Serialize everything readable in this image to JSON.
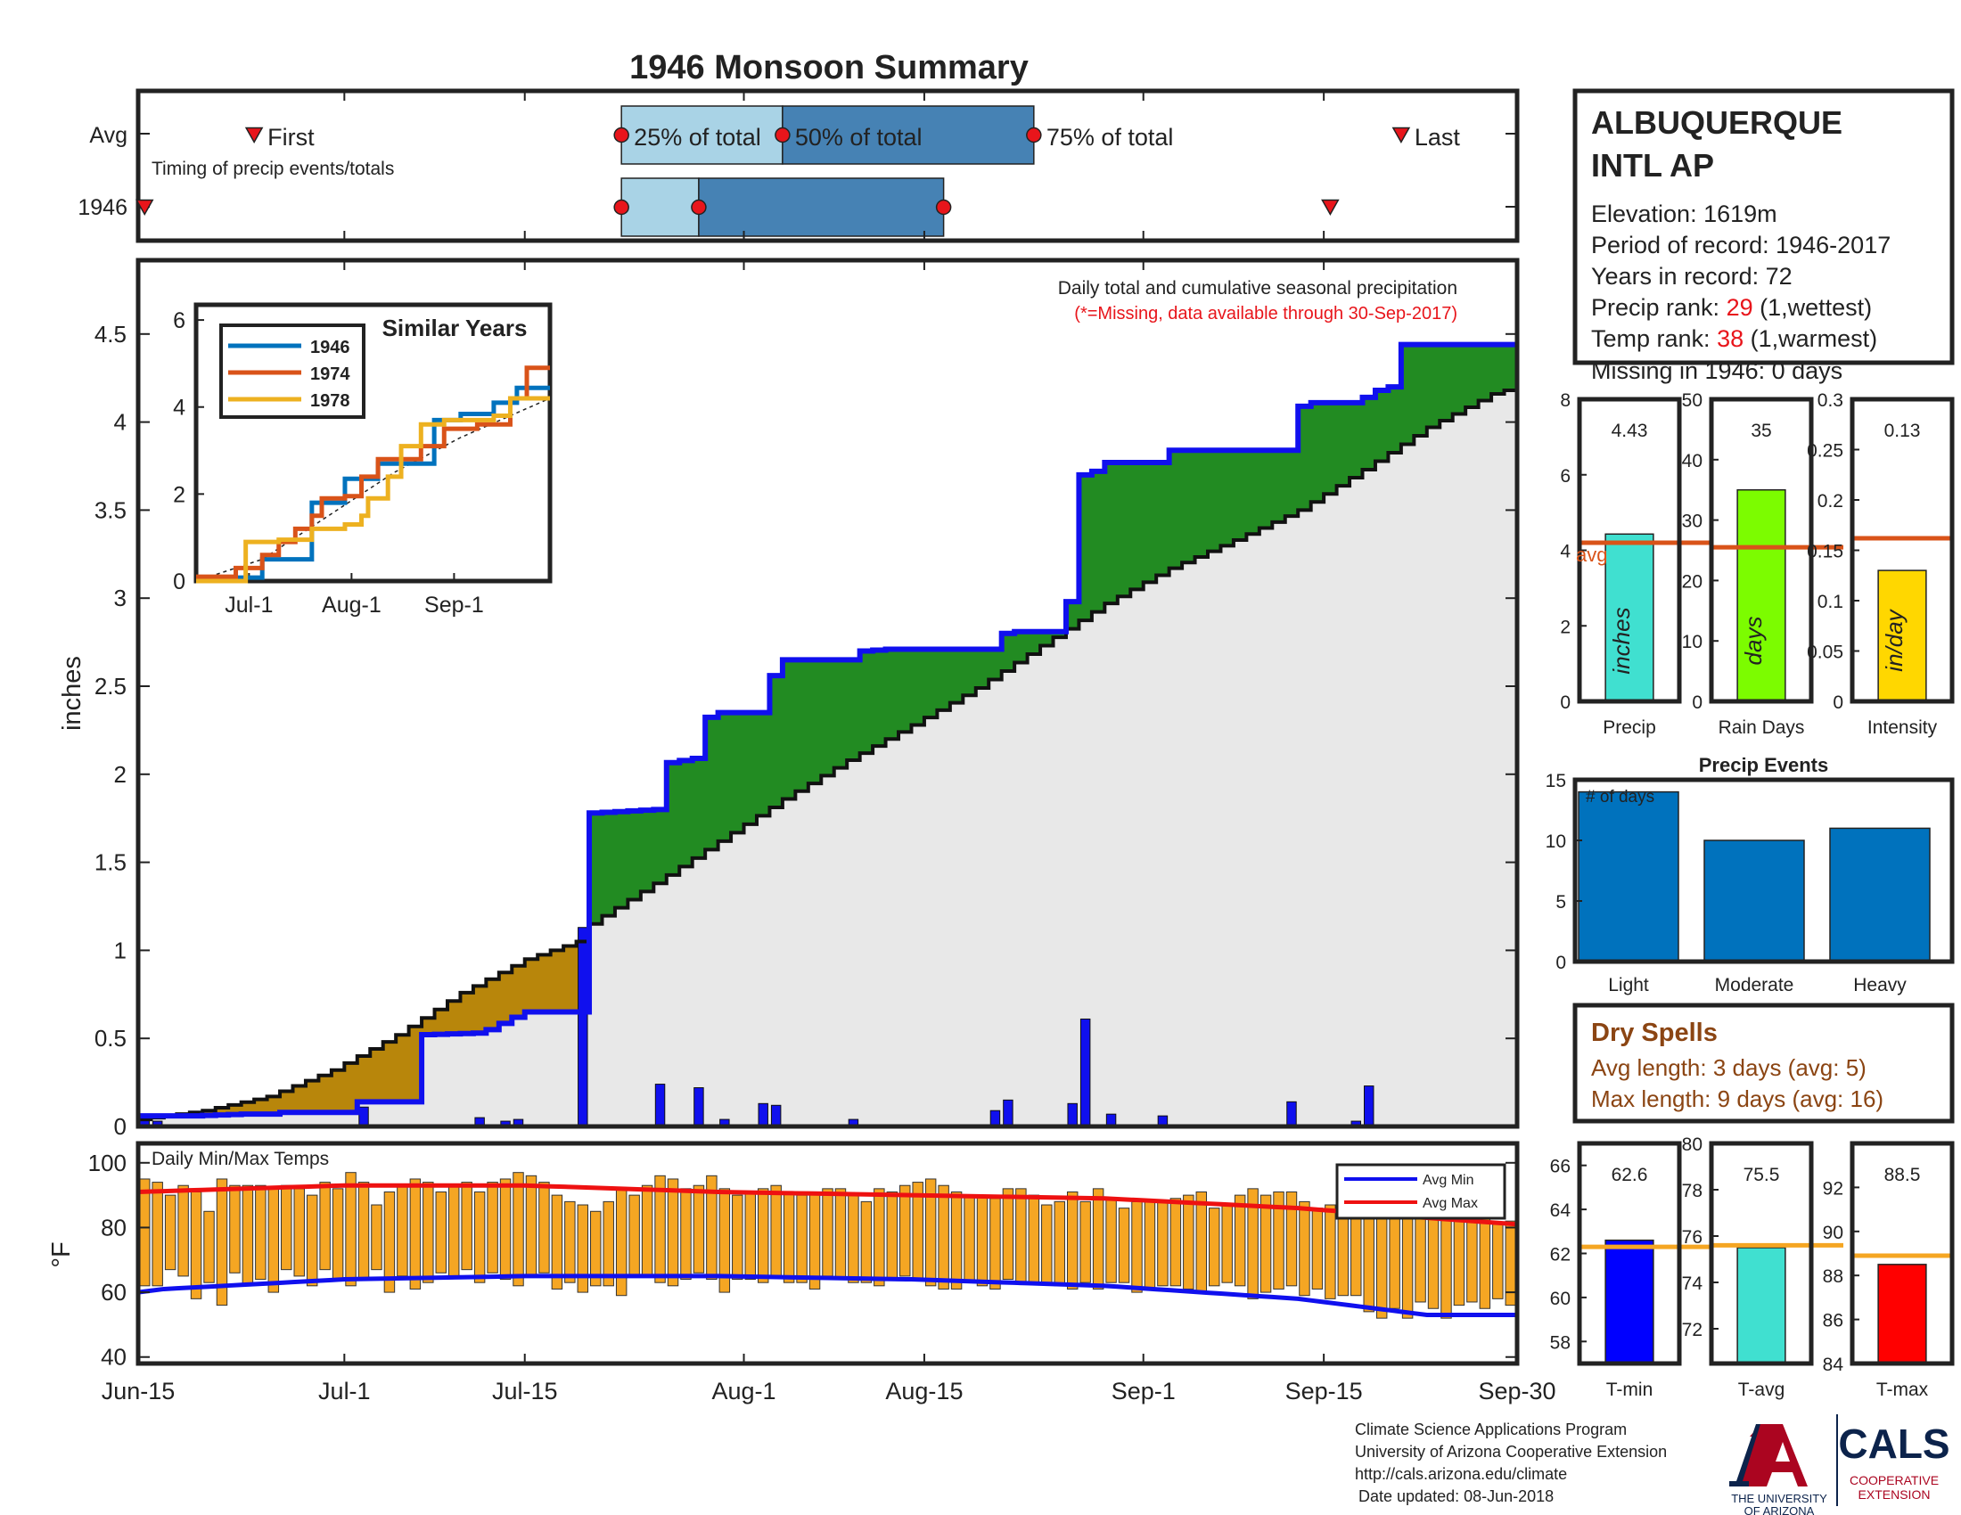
{
  "title": "1946 Monsoon Summary",
  "station": {
    "name_line1": "ALBUQUERQUE",
    "name_line2": "INTL AP",
    "elevation": "Elevation: 1619m",
    "period": "Period of record: 1946-2017",
    "years": "Years in record: 72",
    "precip_rank_label": "Precip rank: ",
    "precip_rank_value": "29",
    "precip_rank_note": " (1,wettest)",
    "temp_rank_label": "Temp rank: ",
    "temp_rank_value": "38",
    "temp_rank_note": " (1,warmest)",
    "missing": "Missing in 1946: 0 days"
  },
  "colors": {
    "accent_red": "#e8151b",
    "precip_line": "#1010ee",
    "green_fill": "#228b22",
    "brown_fill": "#b8860b",
    "gray_fill": "#e8e8e8",
    "light_blue": "#a9d3e6",
    "steel_blue": "#4682b4",
    "temp_bar": "#f5a623",
    "dry_spell_text": "#8b4513"
  },
  "timing": {
    "row_avg_label": "Avg",
    "row_year_label": "1946",
    "subtitle": "Timing of precip events/totals",
    "first_label": "First",
    "last_label": "Last",
    "p25_label": "25% of total",
    "p50_label": "50% of total",
    "p75_label": "75% of total",
    "avg": {
      "first_day": 9,
      "p25": 37.5,
      "p50": 50,
      "p75": 69.5,
      "last_day": 98
    },
    "year": {
      "first_day": 0.5,
      "p25": 37.5,
      "p50": 43.5,
      "p75": 62.5,
      "last_day": 92.5
    }
  },
  "main_chart": {
    "ylabel": "inches",
    "note": "Daily total and cumulative seasonal precipitation",
    "missing_note": "(*=Missing, data available through 30-Sep-2017)",
    "yticks": [
      "0",
      "0.5",
      "1",
      "1.5",
      "2",
      "2.5",
      "3",
      "3.5",
      "4",
      "4.5"
    ]
  },
  "x_axis": {
    "ticks": [
      {
        "day": 0,
        "label": "Jun-15"
      },
      {
        "day": 16,
        "label": "Jul-1"
      },
      {
        "day": 30,
        "label": "Jul-15"
      },
      {
        "day": 47,
        "label": "Aug-1"
      },
      {
        "day": 61,
        "label": "Aug-15"
      },
      {
        "day": 78,
        "label": "Sep-1"
      },
      {
        "day": 92,
        "label": "Sep-15"
      },
      {
        "day": 107,
        "label": "Sep-30"
      }
    ]
  },
  "chart_data": [
    {
      "type": "area",
      "title": "Daily total and cumulative seasonal precipitation",
      "ylabel": "inches",
      "x_range": [
        "Jun-15",
        "Sep-30"
      ],
      "ylim": [
        0,
        4.9
      ],
      "cumulative_1946": [
        [
          0,
          0.06
        ],
        [
          4,
          0.06
        ],
        [
          8,
          0.07
        ],
        [
          10,
          0.07
        ],
        [
          11,
          0.08
        ],
        [
          16,
          0.08
        ],
        [
          17,
          0.14
        ],
        [
          21,
          0.14
        ],
        [
          21.5,
          0.52
        ],
        [
          26,
          0.53
        ],
        [
          27,
          0.55
        ],
        [
          29,
          0.62
        ],
        [
          30,
          0.65
        ],
        [
          34,
          0.65
        ],
        [
          35,
          1.78
        ],
        [
          40,
          1.8
        ],
        [
          40.5,
          2.06
        ],
        [
          43,
          2.09
        ],
        [
          43.5,
          2.31
        ],
        [
          45,
          2.35
        ],
        [
          48,
          2.35
        ],
        [
          49,
          2.56
        ],
        [
          50,
          2.65
        ],
        [
          55,
          2.65
        ],
        [
          56,
          2.7
        ],
        [
          58,
          2.71
        ],
        [
          66,
          2.71
        ],
        [
          67,
          2.8
        ],
        [
          68,
          2.81
        ],
        [
          71,
          2.81
        ],
        [
          72,
          2.98
        ],
        [
          72.5,
          3.69
        ],
        [
          74,
          3.72
        ],
        [
          75,
          3.77
        ],
        [
          79,
          3.77
        ],
        [
          80,
          3.84
        ],
        [
          89,
          3.84
        ],
        [
          90,
          4.09
        ],
        [
          91,
          4.11
        ],
        [
          94,
          4.11
        ],
        [
          95,
          4.14
        ],
        [
          96,
          4.18
        ],
        [
          97,
          4.2
        ],
        [
          97.5,
          4.44
        ],
        [
          100,
          4.44
        ],
        [
          107,
          4.44
        ]
      ],
      "cumulative_avg": [
        [
          0,
          0.04
        ],
        [
          5,
          0.09
        ],
        [
          10,
          0.17
        ],
        [
          15,
          0.32
        ],
        [
          20,
          0.52
        ],
        [
          25,
          0.76
        ],
        [
          30,
          0.95
        ],
        [
          34,
          1.05
        ],
        [
          35,
          1.15
        ],
        [
          40,
          1.38
        ],
        [
          45,
          1.62
        ],
        [
          50,
          1.86
        ],
        [
          55,
          2.08
        ],
        [
          60,
          2.28
        ],
        [
          65,
          2.49
        ],
        [
          70,
          2.73
        ],
        [
          75,
          2.97
        ],
        [
          80,
          3.17
        ],
        [
          85,
          3.33
        ],
        [
          90,
          3.5
        ],
        [
          95,
          3.73
        ],
        [
          100,
          3.97
        ],
        [
          105,
          4.16
        ],
        [
          107,
          4.2
        ]
      ],
      "daily_precip": [
        [
          0,
          0.04
        ],
        [
          1,
          0.03
        ],
        [
          17,
          0.11
        ],
        [
          20,
          0.01
        ],
        [
          26,
          0.05
        ],
        [
          28,
          0.03
        ],
        [
          29,
          0.04
        ],
        [
          34,
          1.13
        ],
        [
          35,
          0.01
        ],
        [
          40,
          0.24
        ],
        [
          42,
          0.01
        ],
        [
          43,
          0.22
        ],
        [
          45,
          0.04
        ],
        [
          48,
          0.13
        ],
        [
          49,
          0.12
        ],
        [
          55,
          0.04
        ],
        [
          66,
          0.09
        ],
        [
          67,
          0.15
        ],
        [
          72,
          0.13
        ],
        [
          73,
          0.61
        ],
        [
          75,
          0.07
        ],
        [
          79,
          0.06
        ],
        [
          89,
          0.14
        ],
        [
          94,
          0.03
        ],
        [
          95,
          0.23
        ]
      ]
    },
    {
      "type": "line",
      "title": "Similar Years",
      "ylim": [
        0,
        6
      ],
      "x_ticks": [
        "Jul-1",
        "Aug-1",
        "Sep-1"
      ],
      "series": [
        {
          "name": "1946",
          "color": "#0072bd",
          "values": [
            [
              0,
              0.06
            ],
            [
              10,
              0.08
            ],
            [
              20,
              0.5
            ],
            [
              35,
              1.8
            ],
            [
              45,
              2.35
            ],
            [
              55,
              2.7
            ],
            [
              65,
              2.7
            ],
            [
              72,
              3.7
            ],
            [
              80,
              3.84
            ],
            [
              90,
              4.1
            ],
            [
              97,
              4.44
            ],
            [
              107,
              4.44
            ]
          ]
        },
        {
          "name": "1974",
          "color": "#d95319",
          "values": [
            [
              0,
              0.1
            ],
            [
              8,
              0.1
            ],
            [
              12,
              0.3
            ],
            [
              20,
              0.6
            ],
            [
              25,
              0.9
            ],
            [
              30,
              1.2
            ],
            [
              35,
              1.5
            ],
            [
              38,
              1.9
            ],
            [
              45,
              1.95
            ],
            [
              50,
              2.4
            ],
            [
              55,
              2.8
            ],
            [
              65,
              2.8
            ],
            [
              68,
              3.1
            ],
            [
              75,
              3.5
            ],
            [
              85,
              3.6
            ],
            [
              95,
              4.2
            ],
            [
              100,
              4.9
            ],
            [
              107,
              4.9
            ]
          ]
        },
        {
          "name": "1978",
          "color": "#edb120",
          "values": [
            [
              0,
              0
            ],
            [
              10,
              0
            ],
            [
              15,
              0.9
            ],
            [
              25,
              0.95
            ],
            [
              35,
              1.2
            ],
            [
              45,
              1.3
            ],
            [
              50,
              1.5
            ],
            [
              52,
              1.9
            ],
            [
              58,
              2.4
            ],
            [
              62,
              3.1
            ],
            [
              68,
              3.6
            ],
            [
              75,
              3.7
            ],
            [
              90,
              3.8
            ],
            [
              95,
              4.2
            ],
            [
              107,
              4.2
            ]
          ]
        }
      ],
      "avg_line": [
        [
          0,
          0
        ],
        [
          20,
          0.5
        ],
        [
          40,
          1.5
        ],
        [
          60,
          2.5
        ],
        [
          80,
          3.3
        ],
        [
          107,
          4.2
        ]
      ]
    },
    {
      "type": "bar",
      "title": "Season totals",
      "categories": [
        "Precip",
        "Rain Days",
        "Intensity"
      ],
      "values": [
        4.43,
        35,
        0.13
      ],
      "value_labels": [
        "4.43",
        "35",
        "0.13"
      ],
      "unit_labels": [
        "inches",
        "days",
        "in/day"
      ],
      "averages": [
        4.2,
        25.5,
        0.162
      ],
      "avg_label": "avg",
      "ylims": [
        [
          0,
          8
        ],
        [
          0,
          50
        ],
        [
          0,
          0.3
        ]
      ],
      "yticks": [
        [
          "0",
          "2",
          "4",
          "6",
          "8"
        ],
        [
          "0",
          "10",
          "20",
          "30",
          "40",
          "50"
        ],
        [
          "0",
          "0.05",
          "0.1",
          "0.15",
          "0.2",
          "0.25",
          "0.3"
        ]
      ],
      "colors": [
        "#40e0d0",
        "#7cfc00",
        "#ffd700"
      ]
    },
    {
      "type": "bar",
      "title": "Precip Events",
      "ylabel": "# of days",
      "categories": [
        "Light",
        "Moderate",
        "Heavy"
      ],
      "values": [
        14,
        10,
        11
      ],
      "ylim": [
        0,
        15
      ],
      "yticks": [
        "0",
        "5",
        "10",
        "15"
      ]
    },
    {
      "type": "bar",
      "title": "Daily Min/Max Temps",
      "ylabel": "°F",
      "ylim": [
        38,
        106
      ],
      "yticks": [
        "40",
        "60",
        "80",
        "100"
      ],
      "legend": [
        "Avg Min",
        "Avg Max"
      ],
      "legend_position": "top-right",
      "avg_max": [
        [
          0,
          91
        ],
        [
          16,
          93
        ],
        [
          30,
          93
        ],
        [
          45,
          91
        ],
        [
          60,
          90
        ],
        [
          75,
          89
        ],
        [
          90,
          86
        ],
        [
          100,
          83
        ],
        [
          107,
          81
        ]
      ],
      "avg_min": [
        [
          0,
          60
        ],
        [
          2,
          61
        ],
        [
          16,
          64
        ],
        [
          30,
          65
        ],
        [
          45,
          65
        ],
        [
          60,
          64
        ],
        [
          75,
          62
        ],
        [
          90,
          58
        ],
        [
          100,
          53
        ],
        [
          107,
          53
        ]
      ],
      "daily_max": [
        95,
        94,
        90,
        93,
        91,
        85,
        95,
        93,
        93,
        93,
        92,
        93,
        92,
        90,
        94,
        92,
        97,
        94,
        87,
        91,
        93,
        95,
        94,
        91,
        93,
        94,
        91,
        94,
        95,
        97,
        96,
        94,
        90,
        88,
        87,
        85,
        88,
        92,
        90,
        93,
        96,
        95,
        92,
        93,
        96,
        92,
        90,
        91,
        92,
        93,
        91,
        90,
        91,
        92,
        92,
        90,
        88,
        92,
        91,
        93,
        94,
        95,
        93,
        91,
        90,
        90,
        89,
        92,
        92,
        90,
        87,
        88,
        91,
        88,
        92,
        89,
        86,
        88,
        88,
        88,
        89,
        90,
        91,
        86,
        87,
        90,
        92,
        90,
        91,
        91,
        88,
        86,
        87,
        89,
        89,
        91,
        91,
        87,
        85,
        87,
        89,
        90,
        88,
        86,
        83,
        81,
        82,
        74
      ],
      "daily_min": [
        62,
        62,
        67,
        65,
        58,
        63,
        56,
        66,
        62,
        64,
        60,
        67,
        65,
        62,
        67,
        64,
        62,
        64,
        67,
        60,
        65,
        61,
        63,
        66,
        65,
        67,
        63,
        66,
        64,
        62,
        65,
        66,
        61,
        63,
        60,
        62,
        62,
        59,
        65,
        65,
        63,
        62,
        64,
        66,
        64,
        60,
        64,
        64,
        63,
        65,
        63,
        63,
        61,
        65,
        64,
        63,
        63,
        62,
        64,
        65,
        64,
        62,
        61,
        61,
        63,
        62,
        61,
        64,
        63,
        63,
        63,
        62,
        61,
        63,
        61,
        63,
        63,
        60,
        61,
        62,
        62,
        61,
        60,
        62,
        63,
        62,
        58,
        60,
        61,
        62,
        59,
        61,
        58,
        59,
        59,
        54,
        52,
        55,
        52,
        57,
        55,
        52,
        56,
        57,
        55,
        58,
        56,
        63
      ]
    },
    {
      "type": "bar",
      "title": "Season temperatures",
      "categories": [
        "T-min",
        "T-avg",
        "T-max"
      ],
      "values": [
        62.6,
        75.5,
        88.5
      ],
      "value_labels": [
        "62.6",
        "75.5",
        "88.5"
      ],
      "averages": [
        62.3,
        75.6,
        88.9
      ],
      "ylims": [
        [
          57,
          67
        ],
        [
          70.5,
          80
        ],
        [
          84,
          94
        ]
      ],
      "yticks": [
        [
          "58",
          "60",
          "62",
          "64",
          "66"
        ],
        [
          "72",
          "74",
          "76",
          "78",
          "80"
        ],
        [
          "84",
          "86",
          "88",
          "90",
          "92"
        ]
      ],
      "colors": [
        "#0000ff",
        "#40e0d0",
        "#ff0000"
      ]
    }
  ],
  "temps_title": "Daily Min/Max Temps",
  "dry_spells": {
    "title": "Dry Spells",
    "avg": "Avg length: 3 days (avg: 5)",
    "max": "Max length: 9 days (avg: 16)"
  },
  "footer": {
    "line1": "Climate Science Applications Program",
    "line2": "University of Arizona Cooperative Extension",
    "line3": "http://cals.arizona.edu/climate",
    "line4": "Date updated: 08-Jun-2018"
  },
  "logos": {
    "ua_line1": "THE UNIVERSITY",
    "ua_line2": "OF ARIZONA",
    "cals": "CALS",
    "cals_sub1": "COOPERATIVE",
    "cals_sub2": "EXTENSION"
  }
}
